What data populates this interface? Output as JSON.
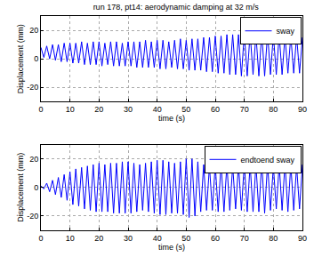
{
  "chart_data": [
    {
      "type": "line",
      "title": "run 178, pt14: aerodynamic damping at 32 m/s",
      "x_label": "time (s)",
      "y_label": "Displacement (mm)",
      "x": [
        0,
        1,
        2,
        3,
        4,
        5,
        6,
        7,
        8,
        9,
        10,
        11,
        12,
        13,
        14,
        15,
        16,
        17,
        18,
        19,
        20,
        21,
        22,
        23,
        24,
        25,
        26,
        27,
        28,
        29,
        30,
        31,
        32,
        33,
        34,
        35,
        36,
        37,
        38,
        39,
        40,
        41,
        42,
        43,
        44,
        45,
        46,
        47,
        48,
        49,
        50,
        51,
        52,
        53,
        54,
        55,
        56,
        57,
        58,
        59,
        60,
        61,
        62,
        63,
        64,
        65,
        66,
        67,
        68,
        69,
        70,
        71,
        72,
        73,
        74,
        75,
        76,
        77,
        78,
        79,
        80,
        81,
        82,
        83,
        84,
        85,
        86,
        87,
        88,
        89,
        90
      ],
      "series": [
        {
          "name": "sway",
          "color": "#0000ff",
          "line_style": "solid",
          "values": [
            8,
            1,
            9,
            0,
            10,
            -1,
            10,
            -2,
            11,
            -2,
            11,
            -3,
            11,
            -3,
            12,
            -4,
            11,
            -4,
            12,
            -4,
            12,
            -5,
            11,
            -4,
            12,
            -5,
            12,
            -5,
            11,
            -5,
            12,
            -5,
            12,
            -6,
            12,
            -6,
            13,
            -6,
            12,
            -6,
            13,
            -7,
            13,
            -7,
            12,
            -6,
            13,
            -7,
            14,
            -7,
            13,
            -8,
            14,
            -8,
            14,
            -8,
            15,
            -9,
            15,
            -9,
            16,
            -10,
            16,
            -10,
            17,
            -11,
            17,
            -11,
            17,
            -12,
            18,
            -12,
            18,
            -11,
            17,
            -12,
            18,
            -12,
            18,
            -11,
            17,
            -11,
            17,
            -11,
            16,
            -10,
            16,
            -10,
            16,
            -10,
            15
          ]
        }
      ],
      "xlim": [
        0,
        90
      ],
      "xticks": [
        0,
        10,
        20,
        30,
        40,
        50,
        60,
        70,
        80,
        90
      ],
      "ylim": [
        -30,
        30
      ],
      "yticks": [
        -20,
        0,
        20
      ],
      "grid": true,
      "legend": "upper right"
    },
    {
      "type": "line",
      "x_label": "time (s)",
      "y_label": "Displacement (mm)",
      "x": [
        0,
        1,
        2,
        3,
        4,
        5,
        6,
        7,
        8,
        9,
        10,
        11,
        12,
        13,
        14,
        15,
        16,
        17,
        18,
        19,
        20,
        21,
        22,
        23,
        24,
        25,
        26,
        27,
        28,
        29,
        30,
        31,
        32,
        33,
        34,
        35,
        36,
        37,
        38,
        39,
        40,
        41,
        42,
        43,
        44,
        45,
        46,
        47,
        48,
        49,
        50,
        51,
        52,
        53,
        54,
        55,
        56,
        57,
        58,
        59,
        60,
        61,
        62,
        63,
        64,
        65,
        66,
        67,
        68,
        69,
        70,
        71,
        72,
        73,
        74,
        75,
        76,
        77,
        78,
        79,
        80,
        81,
        82,
        83,
        84,
        85,
        86,
        87,
        88,
        89,
        90
      ],
      "series": [
        {
          "name": "endtoend sway",
          "color": "#0000ff",
          "line_style": "solid",
          "values": [
            1,
            -1,
            3,
            -3,
            5,
            -5,
            7,
            -7,
            9,
            -9,
            11,
            -12,
            13,
            -13,
            14,
            -15,
            15,
            -16,
            16,
            -17,
            17,
            -17,
            16,
            -17,
            17,
            -18,
            17,
            -18,
            18,
            -18,
            18,
            -18,
            17,
            -17,
            16,
            -16,
            17,
            -17,
            18,
            -18,
            19,
            -19,
            19,
            -19,
            18,
            -18,
            17,
            -18,
            18,
            -19,
            20,
            -21,
            20,
            -20,
            18,
            -17,
            16,
            -16,
            15,
            -16,
            16,
            -17,
            17,
            -17,
            16,
            -16,
            15,
            -15,
            16,
            -16,
            17,
            -17,
            16,
            -17,
            16,
            -17,
            18,
            -18,
            17,
            -16,
            15,
            -15,
            16,
            -16,
            17,
            -17,
            16,
            -16,
            15,
            -15,
            16
          ]
        }
      ],
      "xlim": [
        0,
        90
      ],
      "xticks": [
        0,
        10,
        20,
        30,
        40,
        50,
        60,
        70,
        80,
        90
      ],
      "ylim": [
        -30,
        30
      ],
      "yticks": [
        -20,
        0,
        20
      ],
      "grid": true,
      "legend": "upper right"
    }
  ]
}
